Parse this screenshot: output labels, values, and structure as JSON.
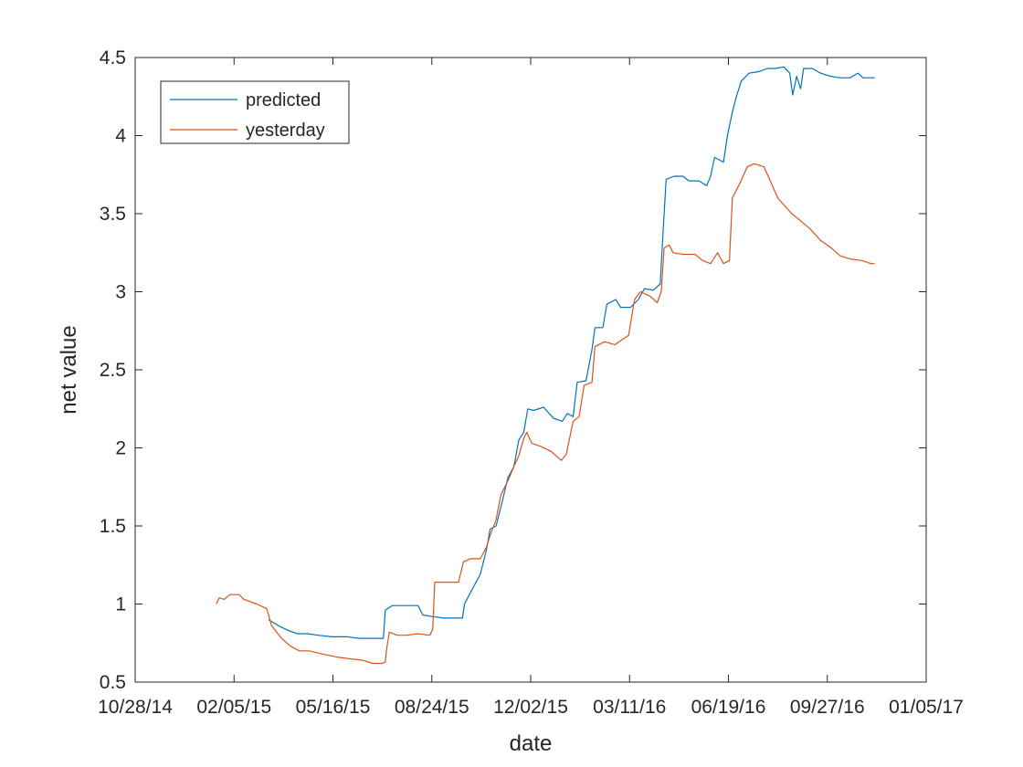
{
  "chart_data": {
    "type": "line",
    "title": "",
    "xlabel": "date",
    "ylabel": "net value",
    "x_ticks": [
      "10/28/14",
      "02/05/15",
      "05/16/15",
      "08/24/15",
      "12/02/15",
      "03/11/16",
      "06/19/16",
      "09/27/16",
      "01/05/17"
    ],
    "xlim": [
      "10/28/14",
      "01/05/17"
    ],
    "y_ticks": [
      "0.5",
      "1",
      "1.5",
      "2",
      "2.5",
      "3",
      "3.5",
      "4",
      "4.5"
    ],
    "ylim": [
      0.5,
      4.5
    ],
    "grid": false,
    "legend": {
      "location": "top-left",
      "entries": [
        "predicted",
        "yesterday"
      ]
    },
    "series": [
      {
        "name": "predicted",
        "color": "#0072BD",
        "points": [
          [
            "03/12/15",
            0.9
          ],
          [
            "03/22/15",
            0.86
          ],
          [
            "04/01/15",
            0.83
          ],
          [
            "04/10/15",
            0.81
          ],
          [
            "04/20/15",
            0.81
          ],
          [
            "05/01/15",
            0.8
          ],
          [
            "05/15/15",
            0.79
          ],
          [
            "05/30/15",
            0.79
          ],
          [
            "06/12/15",
            0.78
          ],
          [
            "06/25/15",
            0.78
          ],
          [
            "07/06/15",
            0.78
          ],
          [
            "07/08/15",
            0.96
          ],
          [
            "07/15/15",
            0.99
          ],
          [
            "07/30/15",
            0.99
          ],
          [
            "08/10/15",
            0.99
          ],
          [
            "08/15/15",
            0.93
          ],
          [
            "08/24/15",
            0.92
          ],
          [
            "09/05/15",
            0.91
          ],
          [
            "09/15/15",
            0.91
          ],
          [
            "09/24/15",
            0.91
          ],
          [
            "09/26/15",
            1.0
          ],
          [
            "10/01/15",
            1.06
          ],
          [
            "10/06/15",
            1.12
          ],
          [
            "10/12/15",
            1.19
          ],
          [
            "10/18/15",
            1.34
          ],
          [
            "10/22/15",
            1.48
          ],
          [
            "10/28/15",
            1.5
          ],
          [
            "11/03/15",
            1.65
          ],
          [
            "11/09/15",
            1.81
          ],
          [
            "11/15/15",
            1.88
          ],
          [
            "11/20/15",
            2.05
          ],
          [
            "11/25/15",
            2.1
          ],
          [
            "11/29/15",
            2.25
          ],
          [
            "12/05/15",
            2.24
          ],
          [
            "12/15/15",
            2.26
          ],
          [
            "12/25/15",
            2.19
          ],
          [
            "01/03/16",
            2.17
          ],
          [
            "01/08/16",
            2.22
          ],
          [
            "01/14/16",
            2.2
          ],
          [
            "01/18/16",
            2.42
          ],
          [
            "01/27/16",
            2.43
          ],
          [
            "02/02/16",
            2.63
          ],
          [
            "02/05/16",
            2.77
          ],
          [
            "02/13/16",
            2.77
          ],
          [
            "02/17/16",
            2.92
          ],
          [
            "02/26/16",
            2.95
          ],
          [
            "03/02/16",
            2.9
          ],
          [
            "03/12/16",
            2.9
          ],
          [
            "03/20/16",
            2.95
          ],
          [
            "03/26/16",
            3.02
          ],
          [
            "04/04/16",
            3.01
          ],
          [
            "04/11/16",
            3.05
          ],
          [
            "04/14/16",
            3.4
          ],
          [
            "04/17/16",
            3.72
          ],
          [
            "04/25/16",
            3.74
          ],
          [
            "05/04/16",
            3.74
          ],
          [
            "05/10/16",
            3.71
          ],
          [
            "05/20/16",
            3.71
          ],
          [
            "05/28/16",
            3.68
          ],
          [
            "06/01/16",
            3.74
          ],
          [
            "06/05/16",
            3.86
          ],
          [
            "06/14/16",
            3.83
          ],
          [
            "06/18/16",
            4.0
          ],
          [
            "06/23/16",
            4.15
          ],
          [
            "06/27/16",
            4.25
          ],
          [
            "07/02/16",
            4.35
          ],
          [
            "07/10/16",
            4.4
          ],
          [
            "07/20/16",
            4.41
          ],
          [
            "07/28/16",
            4.43
          ],
          [
            "08/05/16",
            4.43
          ],
          [
            "08/14/16",
            4.44
          ],
          [
            "08/20/16",
            4.4
          ],
          [
            "08/23/16",
            4.26
          ],
          [
            "08/27/16",
            4.38
          ],
          [
            "08/31/16",
            4.3
          ],
          [
            "09/03/16",
            4.43
          ],
          [
            "09/12/16",
            4.43
          ],
          [
            "09/20/16",
            4.4
          ],
          [
            "09/30/16",
            4.38
          ],
          [
            "10/10/16",
            4.37
          ],
          [
            "10/20/16",
            4.37
          ],
          [
            "10/28/16",
            4.4
          ],
          [
            "11/02/16",
            4.37
          ],
          [
            "11/14/16",
            4.37
          ]
        ]
      },
      {
        "name": "yesterday",
        "color": "#D95319",
        "points": [
          [
            "01/18/15",
            1.0
          ],
          [
            "01/21/15",
            1.04
          ],
          [
            "01/26/15",
            1.03
          ],
          [
            "02/01/15",
            1.06
          ],
          [
            "02/10/15",
            1.06
          ],
          [
            "02/15/15",
            1.03
          ],
          [
            "02/28/15",
            1.0
          ],
          [
            "03/10/15",
            0.97
          ],
          [
            "03/15/15",
            0.86
          ],
          [
            "03/25/15",
            0.78
          ],
          [
            "04/03/15",
            0.73
          ],
          [
            "04/12/15",
            0.7
          ],
          [
            "04/22/15",
            0.7
          ],
          [
            "05/05/15",
            0.68
          ],
          [
            "05/20/15",
            0.66
          ],
          [
            "06/01/15",
            0.65
          ],
          [
            "06/15/15",
            0.64
          ],
          [
            "06/25/15",
            0.62
          ],
          [
            "07/05/15",
            0.62
          ],
          [
            "07/08/15",
            0.63
          ],
          [
            "07/09/15",
            0.7
          ],
          [
            "07/12/15",
            0.82
          ],
          [
            "07/20/15",
            0.8
          ],
          [
            "07/30/15",
            0.8
          ],
          [
            "08/10/15",
            0.81
          ],
          [
            "08/22/15",
            0.8
          ],
          [
            "08/25/15",
            0.84
          ],
          [
            "08/27/15",
            1.14
          ],
          [
            "09/08/15",
            1.14
          ],
          [
            "09/20/15",
            1.14
          ],
          [
            "09/25/15",
            1.27
          ],
          [
            "10/02/15",
            1.29
          ],
          [
            "10/12/15",
            1.29
          ],
          [
            "10/18/15",
            1.36
          ],
          [
            "10/22/15",
            1.44
          ],
          [
            "10/28/15",
            1.54
          ],
          [
            "11/02/15",
            1.7
          ],
          [
            "11/09/15",
            1.79
          ],
          [
            "11/15/15",
            1.88
          ],
          [
            "11/20/15",
            1.95
          ],
          [
            "11/25/15",
            2.06
          ],
          [
            "11/28/15",
            2.1
          ],
          [
            "12/03/15",
            2.03
          ],
          [
            "12/12/15",
            2.01
          ],
          [
            "12/22/15",
            1.98
          ],
          [
            "01/02/16",
            1.92
          ],
          [
            "01/07/16",
            1.96
          ],
          [
            "01/10/16",
            2.05
          ],
          [
            "01/14/16",
            2.17
          ],
          [
            "01/20/16",
            2.2
          ],
          [
            "01/25/16",
            2.4
          ],
          [
            "02/02/16",
            2.42
          ],
          [
            "02/05/16",
            2.65
          ],
          [
            "02/15/16",
            2.68
          ],
          [
            "02/25/16",
            2.66
          ],
          [
            "03/05/16",
            2.7
          ],
          [
            "03/10/16",
            2.72
          ],
          [
            "03/16/16",
            2.95
          ],
          [
            "03/22/16",
            3.0
          ],
          [
            "04/01/16",
            2.97
          ],
          [
            "04/08/16",
            2.93
          ],
          [
            "04/12/16",
            3.0
          ],
          [
            "04/15/16",
            3.28
          ],
          [
            "04/20/16",
            3.3
          ],
          [
            "04/24/16",
            3.25
          ],
          [
            "05/04/16",
            3.24
          ],
          [
            "05/16/16",
            3.24
          ],
          [
            "05/24/16",
            3.2
          ],
          [
            "06/01/16",
            3.18
          ],
          [
            "06/08/16",
            3.25
          ],
          [
            "06/14/16",
            3.18
          ],
          [
            "06/20/16",
            3.2
          ],
          [
            "06/23/16",
            3.6
          ],
          [
            "07/01/16",
            3.7
          ],
          [
            "07/08/16",
            3.8
          ],
          [
            "07/15/16",
            3.82
          ],
          [
            "07/25/16",
            3.8
          ],
          [
            "08/01/16",
            3.7
          ],
          [
            "08/08/16",
            3.6
          ],
          [
            "08/15/16",
            3.55
          ],
          [
            "08/22/16",
            3.5
          ],
          [
            "08/30/16",
            3.46
          ],
          [
            "09/10/16",
            3.4
          ],
          [
            "09/20/16",
            3.33
          ],
          [
            "10/01/16",
            3.28
          ],
          [
            "10/10/16",
            3.23
          ],
          [
            "10/20/16",
            3.21
          ],
          [
            "11/01/16",
            3.2
          ],
          [
            "11/10/16",
            3.18
          ],
          [
            "11/14/16",
            3.18
          ]
        ]
      }
    ]
  }
}
